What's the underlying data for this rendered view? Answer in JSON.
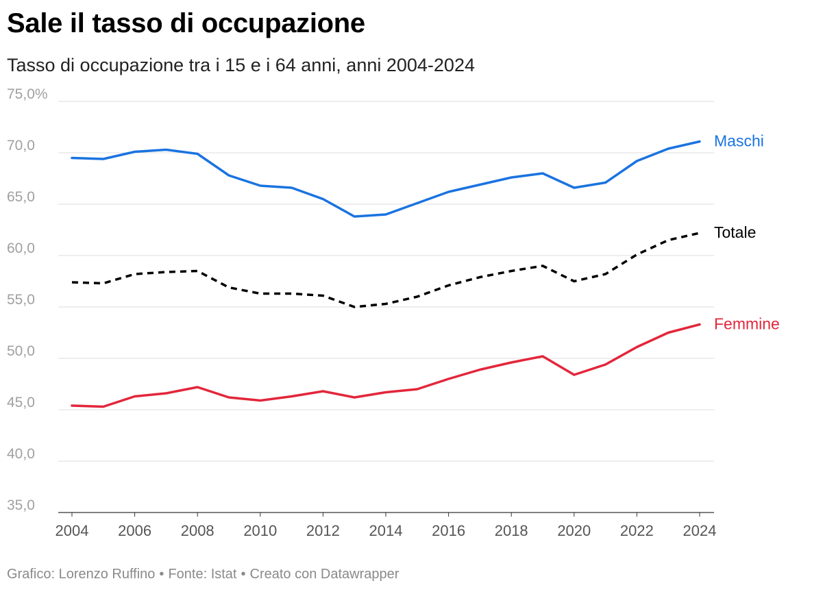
{
  "title": "Sale il tasso di occupazione",
  "subtitle": "Tasso di occupazione tra i 15 e i 64 anni, anni 2004-2024",
  "footer": {
    "author": "Grafico: Lorenzo Ruffino",
    "source": "Fonte: Istat",
    "tool": "Creato con Datawrapper",
    "separator": "•"
  },
  "chart_data": {
    "type": "line",
    "x": [
      2004,
      2005,
      2006,
      2007,
      2008,
      2009,
      2010,
      2011,
      2012,
      2013,
      2014,
      2015,
      2016,
      2017,
      2018,
      2019,
      2020,
      2021,
      2022,
      2023,
      2024
    ],
    "x_tick_labels": [
      "2004",
      "2006",
      "2008",
      "2010",
      "2012",
      "2014",
      "2016",
      "2018",
      "2020",
      "2022",
      "2024"
    ],
    "y_tick_labels": [
      "75,0%",
      "70,0",
      "65,0",
      "60,0",
      "55,0",
      "50,0",
      "45,0",
      "40,0",
      "35,0"
    ],
    "y_ticks": [
      75,
      70,
      65,
      60,
      55,
      50,
      45,
      40,
      35
    ],
    "ylim": [
      35,
      75
    ],
    "xlim": [
      2004,
      2024
    ],
    "grid": true,
    "legend": "direct labels at line ends (right)",
    "series": [
      {
        "name": "Maschi",
        "color": "#1a73e0",
        "dashed": false,
        "values": [
          69.5,
          69.4,
          70.1,
          70.3,
          69.9,
          67.8,
          66.8,
          66.6,
          65.5,
          63.8,
          64.0,
          65.1,
          66.2,
          66.9,
          67.6,
          68.0,
          66.6,
          67.1,
          69.2,
          70.4,
          71.1
        ]
      },
      {
        "name": "Totale",
        "color": "#000000",
        "dashed": true,
        "values": [
          57.4,
          57.3,
          58.2,
          58.4,
          58.5,
          56.9,
          56.3,
          56.3,
          56.1,
          55.0,
          55.3,
          56.0,
          57.1,
          57.9,
          58.5,
          59.0,
          57.5,
          58.2,
          60.1,
          61.5,
          62.2
        ]
      },
      {
        "name": "Femmine",
        "color": "#e3263b",
        "dashed": false,
        "values": [
          45.4,
          45.3,
          46.3,
          46.6,
          47.2,
          46.2,
          45.9,
          46.3,
          46.8,
          46.2,
          46.7,
          47.0,
          48.0,
          48.9,
          49.6,
          50.2,
          48.4,
          49.4,
          51.1,
          52.5,
          53.3
        ]
      }
    ]
  }
}
